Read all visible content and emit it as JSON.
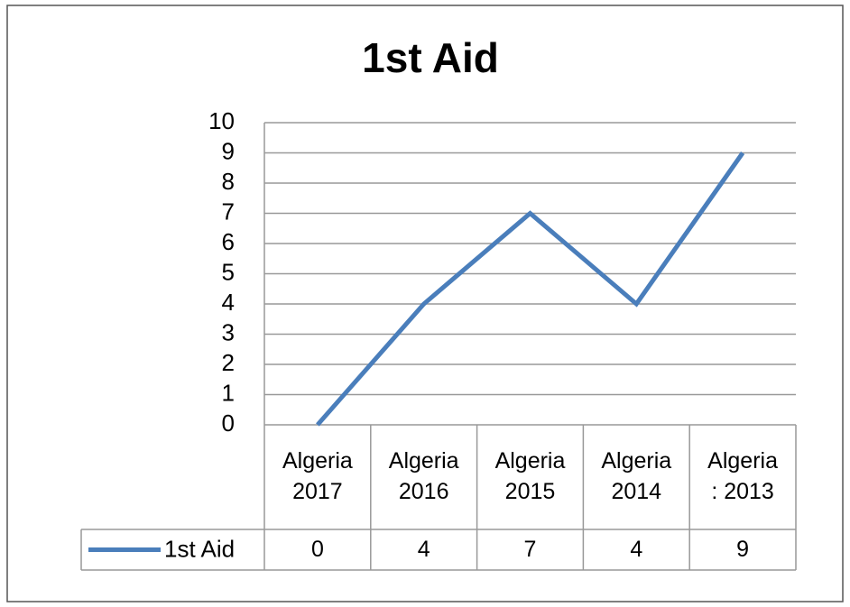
{
  "chart_data": {
    "type": "line",
    "title": "1st Aid",
    "categories": [
      "Algeria 2017",
      "Algeria 2016",
      "Algeria 2015",
      "Algeria 2014",
      "Algeria : 2013"
    ],
    "series": [
      {
        "name": "1st Aid",
        "color": "#4a7ebb",
        "values": [
          0,
          4,
          7,
          4,
          9
        ]
      }
    ],
    "ylim": [
      0,
      10
    ],
    "yticks": [
      0,
      1,
      2,
      3,
      4,
      5,
      6,
      7,
      8,
      9,
      10
    ],
    "grid": true,
    "data_table": true
  }
}
